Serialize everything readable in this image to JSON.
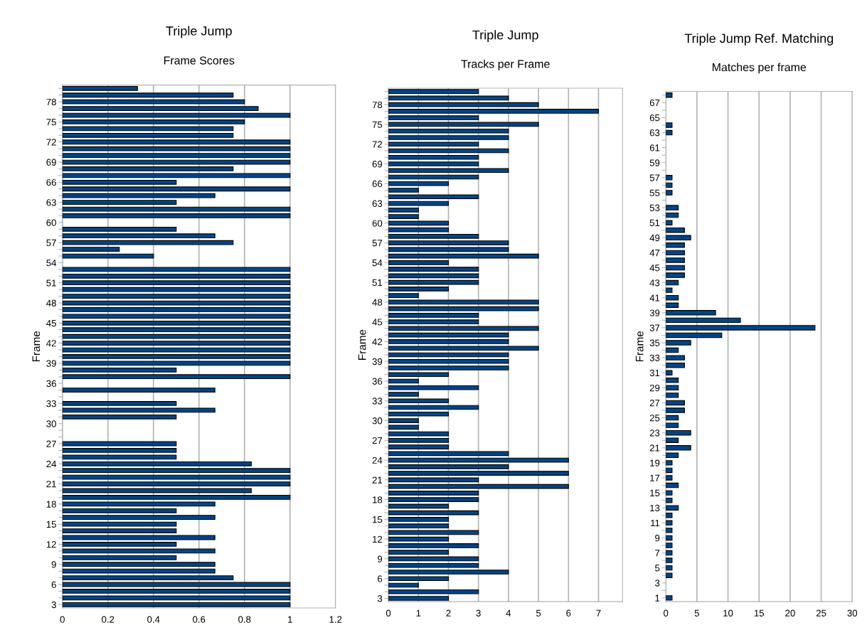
{
  "chart_data": [
    {
      "type": "bar",
      "orientation": "horizontal",
      "title": "Triple Jump",
      "subtitle": "Frame Scores",
      "ylabel": "Frame",
      "grid": "x",
      "color": "#004586",
      "categories": [
        null,
        null,
        "78",
        null,
        null,
        "75",
        null,
        null,
        "72",
        null,
        null,
        "69",
        null,
        null,
        "66",
        null,
        null,
        "63",
        null,
        null,
        "60",
        null,
        null,
        "57",
        null,
        null,
        "54",
        null,
        null,
        "51",
        null,
        null,
        "48",
        null,
        null,
        "45",
        null,
        null,
        "42",
        null,
        null,
        "39",
        null,
        null,
        "36",
        null,
        null,
        "33",
        null,
        null,
        "30",
        null,
        null,
        "27",
        null,
        null,
        "24",
        null,
        null,
        "21",
        null,
        null,
        "18",
        null,
        null,
        "15",
        null,
        null,
        "12",
        null,
        null,
        "9",
        null,
        null,
        "6",
        null,
        null,
        "3"
      ],
      "values": [
        0.33,
        0.75,
        0.8,
        0.86,
        1,
        0.8,
        0.75,
        0.75,
        1,
        1,
        1,
        1,
        0.75,
        1,
        0.5,
        1,
        0.67,
        0.5,
        1,
        1,
        null,
        0.5,
        0.67,
        0.75,
        0.25,
        0.4,
        null,
        1,
        1,
        1,
        1,
        1,
        1,
        1,
        1,
        1,
        1,
        1,
        1,
        1,
        1,
        1,
        0.5,
        1,
        null,
        0.67,
        null,
        0.5,
        0.67,
        0.5,
        null,
        null,
        null,
        0.5,
        0.5,
        0.5,
        0.83,
        1,
        1,
        1,
        0.83,
        1,
        0.67,
        0.5,
        0.67,
        0.5,
        0.5,
        0.67,
        0.5,
        0.67,
        0.5,
        0.67,
        0.67,
        0.75,
        1,
        1,
        1,
        1
      ],
      "xlim": [
        0,
        1.2
      ],
      "xticks": [
        0,
        0.2,
        0.4,
        0.6,
        0.8,
        1,
        1.2
      ]
    },
    {
      "type": "bar",
      "orientation": "horizontal",
      "title": "Triple Jump",
      "subtitle": "Tracks per Frame",
      "ylabel": "Frame",
      "grid": "x",
      "color": "#004586",
      "categories": [
        null,
        null,
        "78",
        null,
        null,
        "75",
        null,
        null,
        "72",
        null,
        null,
        "69",
        null,
        null,
        "66",
        null,
        null,
        "63",
        null,
        null,
        "60",
        null,
        null,
        "57",
        null,
        null,
        "54",
        null,
        null,
        "51",
        null,
        null,
        "48",
        null,
        null,
        "45",
        null,
        null,
        "42",
        null,
        null,
        "39",
        null,
        null,
        "36",
        null,
        null,
        "33",
        null,
        null,
        "30",
        null,
        null,
        "27",
        null,
        null,
        "24",
        null,
        null,
        "21",
        null,
        null,
        "18",
        null,
        null,
        "15",
        null,
        null,
        "12",
        null,
        null,
        "9",
        null,
        null,
        "6",
        null,
        null,
        "3"
      ],
      "values": [
        3,
        4,
        5,
        7,
        3,
        5,
        4,
        4,
        3,
        4,
        3,
        3,
        4,
        3,
        2,
        1,
        3,
        2,
        1,
        1,
        2,
        2,
        3,
        4,
        4,
        5,
        2,
        3,
        3,
        3,
        2,
        1,
        5,
        5,
        3,
        3,
        5,
        4,
        4,
        5,
        4,
        4,
        4,
        2,
        1,
        3,
        1,
        2,
        3,
        2,
        1,
        1,
        2,
        2,
        2,
        4,
        6,
        4,
        6,
        3,
        6,
        3,
        3,
        2,
        3,
        2,
        2,
        3,
        2,
        3,
        2,
        3,
        3,
        4,
        2,
        1,
        3,
        2
      ],
      "xlim": [
        0,
        7.8
      ],
      "xticks": [
        0,
        1,
        2,
        3,
        4,
        5,
        6,
        7
      ]
    },
    {
      "type": "bar",
      "orientation": "horizontal",
      "title": "Triple Jump Ref. Matching",
      "subtitle": "Matches per frame",
      "ylabel": "Frame",
      "grid": "x",
      "color": "#004586",
      "categories": [
        null,
        "67",
        null,
        "65",
        null,
        "63",
        null,
        "61",
        null,
        "59",
        null,
        "57",
        null,
        "55",
        null,
        "53",
        null,
        "51",
        null,
        "49",
        null,
        "47",
        null,
        "45",
        null,
        "43",
        null,
        "41",
        null,
        "39",
        null,
        "37",
        null,
        "35",
        null,
        "33",
        null,
        "31",
        null,
        "29",
        null,
        "27",
        null,
        "25",
        null,
        "23",
        null,
        "21",
        null,
        "19",
        null,
        "17",
        null,
        "15",
        null,
        "13",
        null,
        "11",
        null,
        "9",
        null,
        "7",
        null,
        "5",
        null,
        "3",
        null,
        "1"
      ],
      "values": [
        1,
        null,
        null,
        null,
        1,
        1,
        null,
        null,
        null,
        null,
        null,
        1,
        1,
        1,
        null,
        2,
        2,
        1,
        3,
        4,
        3,
        3,
        3,
        3,
        3,
        2,
        1,
        2,
        2,
        8,
        12,
        24,
        9,
        4,
        2,
        3,
        3,
        1,
        2,
        2,
        2,
        3,
        3,
        2,
        2,
        4,
        2,
        4,
        2,
        1,
        1,
        1,
        2,
        1,
        1,
        2,
        1,
        1,
        1,
        1,
        1,
        1,
        1,
        1,
        1,
        null,
        null,
        1
      ],
      "xlim": [
        0,
        30
      ],
      "xticks": [
        0,
        5,
        10,
        15,
        20,
        25,
        30
      ]
    }
  ]
}
